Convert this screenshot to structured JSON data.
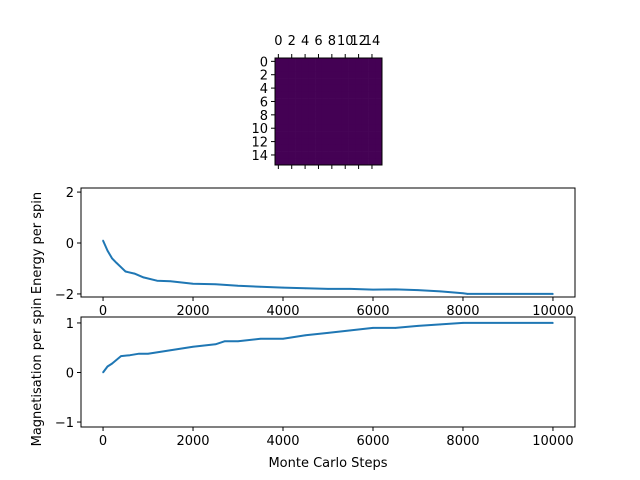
{
  "chart_data": [
    {
      "type": "heatmap",
      "title": "",
      "rows": 16,
      "cols": 16,
      "fill_value": 0,
      "color": "#440154",
      "xticks": [
        "0",
        "2",
        "4",
        "6",
        "8",
        "10",
        "12",
        "14"
      ],
      "yticks": [
        "0",
        "2",
        "4",
        "6",
        "8",
        "10",
        "12",
        "14"
      ],
      "xlim": [
        -0.5,
        15.5
      ],
      "ylim": [
        15.5,
        -0.5
      ]
    },
    {
      "type": "line",
      "xlabel": "",
      "ylabel": "Energy per spin",
      "xlim": [
        -490,
        10490
      ],
      "ylim": [
        -2.12,
        2.16
      ],
      "xticks": [
        0,
        2000,
        4000,
        6000,
        8000,
        10000
      ],
      "yticks": [
        -2,
        0,
        2
      ],
      "color": "#1f77b4",
      "x": [
        0,
        100,
        200,
        300,
        400,
        500,
        700,
        900,
        1200,
        1500,
        2000,
        2500,
        3000,
        3500,
        4000,
        4500,
        5000,
        5500,
        6000,
        6500,
        7000,
        7500,
        8000,
        8100,
        10000
      ],
      "y": [
        0.1,
        -0.3,
        -0.6,
        -0.78,
        -0.95,
        -1.12,
        -1.2,
        -1.35,
        -1.48,
        -1.5,
        -1.6,
        -1.62,
        -1.68,
        -1.72,
        -1.75,
        -1.78,
        -1.8,
        -1.8,
        -1.83,
        -1.82,
        -1.85,
        -1.9,
        -1.97,
        -2,
        -2
      ]
    },
    {
      "type": "line",
      "xlabel": "Monte Carlo Steps",
      "ylabel": "Magnetisation per spin",
      "xlim": [
        -490,
        10490
      ],
      "ylim": [
        -1.1,
        1.12
      ],
      "xticks": [
        0,
        2000,
        4000,
        6000,
        8000,
        10000
      ],
      "yticks": [
        -1,
        0,
        1
      ],
      "color": "#1f77b4",
      "x": [
        0,
        100,
        200,
        400,
        600,
        800,
        1000,
        1500,
        2000,
        2500,
        2700,
        3000,
        3500,
        4000,
        4500,
        5000,
        5500,
        6000,
        6500,
        7000,
        7500,
        8000,
        10000
      ],
      "y": [
        0,
        0.12,
        0.18,
        0.33,
        0.35,
        0.38,
        0.38,
        0.45,
        0.52,
        0.57,
        0.63,
        0.63,
        0.68,
        0.68,
        0.75,
        0.8,
        0.85,
        0.9,
        0.9,
        0.94,
        0.97,
        1.0,
        1.0
      ]
    }
  ]
}
